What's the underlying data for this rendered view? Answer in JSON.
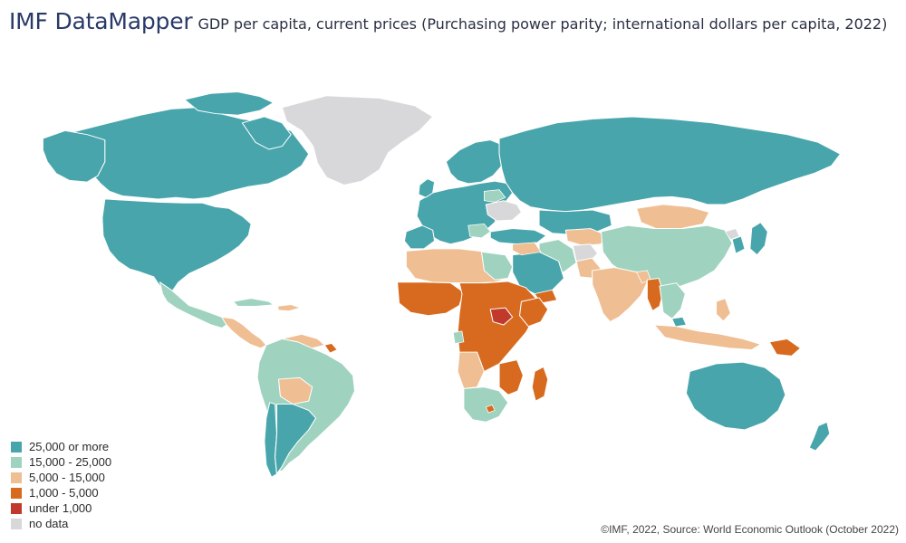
{
  "header": {
    "brand": "IMF DataMapper",
    "title": "GDP per capita, current prices (Purchasing power parity; international dollars per capita, 2022)"
  },
  "legend": {
    "items": [
      {
        "label": "25,000 or more",
        "color": "#48a5ac"
      },
      {
        "label": "15,000 - 25,000",
        "color": "#9fd3c0"
      },
      {
        "label": "5,000 - 15,000",
        "color": "#efbe92"
      },
      {
        "label": "1,000 - 5,000",
        "color": "#d86a1f"
      },
      {
        "label": "under 1,000",
        "color": "#c0392b"
      },
      {
        "label": "no data",
        "color": "#d8d8da"
      }
    ]
  },
  "footer": {
    "source": "©IMF, 2022, Source: World Economic Outlook (October 2022)"
  },
  "map": {
    "type": "choropleth",
    "regions": [
      {
        "name": "Greenland",
        "class": "no data"
      },
      {
        "name": "Canada",
        "class": "25,000 or more"
      },
      {
        "name": "United States",
        "class": "25,000 or more"
      },
      {
        "name": "Mexico",
        "class": "15,000 - 25,000"
      },
      {
        "name": "Central America",
        "class": "5,000 - 15,000"
      },
      {
        "name": "South America",
        "class": "15,000 - 25,000"
      },
      {
        "name": "Chile",
        "class": "25,000 or more"
      },
      {
        "name": "Argentina",
        "class": "25,000 or more"
      },
      {
        "name": "Western Europe",
        "class": "25,000 or more"
      },
      {
        "name": "Ukraine",
        "class": "no data"
      },
      {
        "name": "Russia",
        "class": "25,000 or more"
      },
      {
        "name": "China",
        "class": "15,000 - 25,000"
      },
      {
        "name": "Mongolia",
        "class": "5,000 - 15,000"
      },
      {
        "name": "India",
        "class": "5,000 - 15,000"
      },
      {
        "name": "Afghanistan",
        "class": "no data"
      },
      {
        "name": "Saudi Arabia",
        "class": "25,000 or more"
      },
      {
        "name": "Australia",
        "class": "25,000 or more"
      },
      {
        "name": "New Zealand",
        "class": "25,000 or more"
      },
      {
        "name": "Japan",
        "class": "25,000 or more"
      },
      {
        "name": "South Sudan",
        "class": "under 1,000"
      },
      {
        "name": "Papua New Guinea",
        "class": "1,000 - 5,000"
      },
      {
        "name": "Madagascar",
        "class": "1,000 - 5,000"
      },
      {
        "name": "Myanmar",
        "class": "1,000 - 5,000"
      }
    ]
  }
}
